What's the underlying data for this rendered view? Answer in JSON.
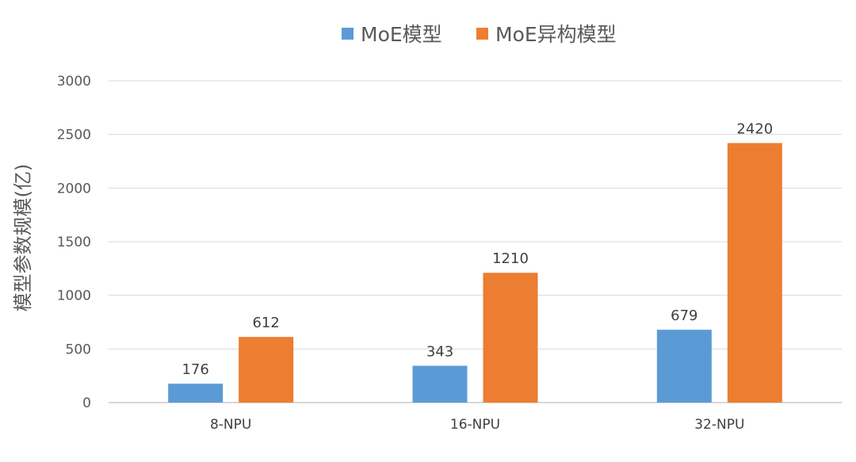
{
  "chart_data": {
    "type": "bar",
    "categories": [
      "8-NPU",
      "16-NPU",
      "32-NPU"
    ],
    "series": [
      {
        "name": "MoE模型",
        "values": [
          176,
          343,
          679
        ],
        "color": "#5B9BD5"
      },
      {
        "name": "MoE异构模型",
        "values": [
          612,
          1210,
          2420
        ],
        "color": "#ED7D31"
      }
    ],
    "ylabel": "模型参数规模(亿)",
    "xlabel": "",
    "ylim": [
      0,
      3000
    ],
    "yticks": [
      0,
      500,
      1000,
      1500,
      2000,
      2500,
      3000
    ],
    "grid": true,
    "legend_position": "top-center"
  }
}
